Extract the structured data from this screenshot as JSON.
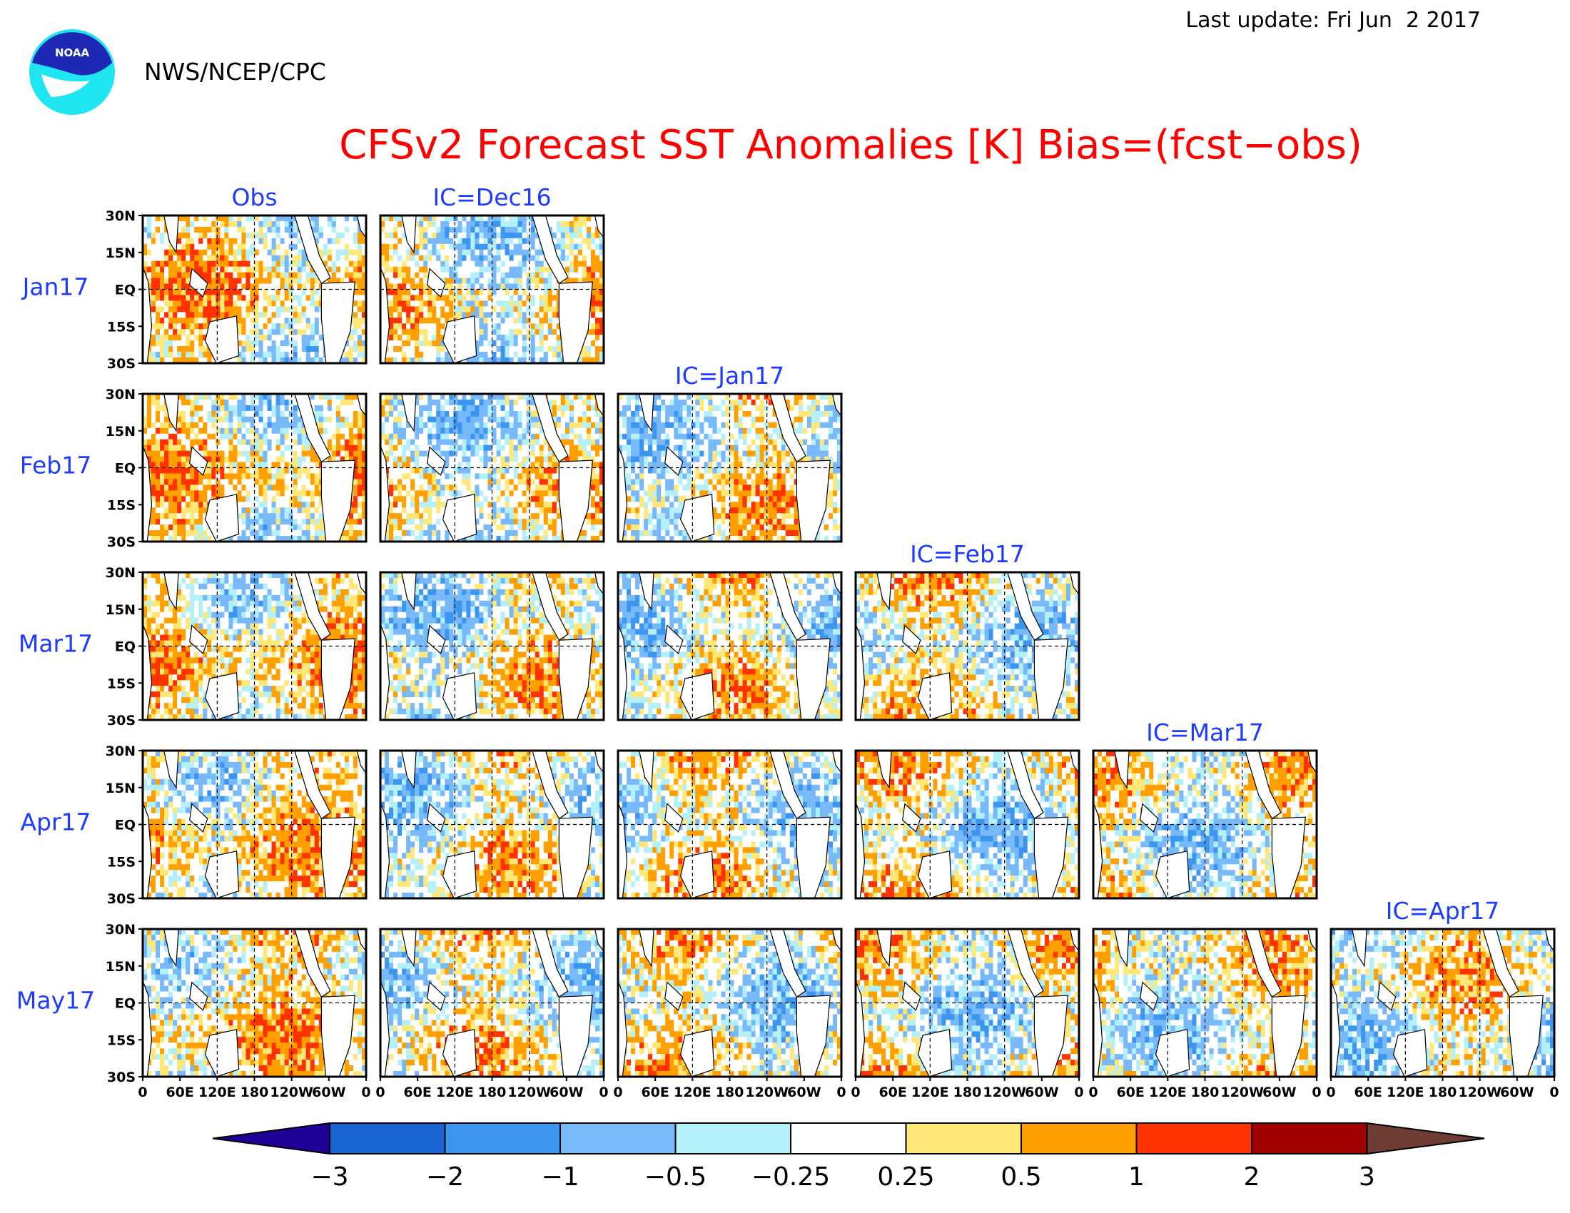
{
  "header": {
    "last_update": "Last update: Fri Jun  2 2017",
    "agency": "NWS/NCEP/CPC",
    "logo_text": "NOAA",
    "title": "CFSv2 Forecast SST Anomalies [K] Bias=(fcst−obs)"
  },
  "colors": {
    "title": "#ff0000",
    "labels": "#1e3cff",
    "frame": "#000000"
  },
  "chart_data": {
    "type": "heatmap",
    "title": "CFSv2 Forecast SST Anomalies [K] Bias=(fcst−obs)",
    "units": "K",
    "row_labels": [
      "Jan17",
      "Feb17",
      "Mar17",
      "Apr17",
      "May17"
    ],
    "column_labels": [
      "Obs",
      "IC=Dec16",
      "IC=Jan17",
      "IC=Feb17",
      "IC=Mar17",
      "IC=Apr17"
    ],
    "column_label_rows": [
      0,
      0,
      1,
      2,
      3,
      4
    ],
    "lat_ticks": [
      "30N",
      "15N",
      "EQ",
      "15S",
      "30S"
    ],
    "lat_range": [
      -30,
      30
    ],
    "lon_ticks": [
      "0",
      "60E",
      "120E",
      "180",
      "120W",
      "60W",
      "0"
    ],
    "lon_range": [
      0,
      360
    ],
    "panels_per_row": [
      2,
      3,
      4,
      5,
      6
    ],
    "grid": "dashed at EQ, 120E, 180, 120W",
    "colorbar": {
      "ticks": [
        "−3",
        "−2",
        "−1",
        "−0.5",
        "−0.25",
        "0.25",
        "0.5",
        "1",
        "2",
        "3"
      ],
      "bounds": [
        -3,
        -2,
        -1,
        -0.5,
        -0.25,
        0.25,
        0.5,
        1,
        2,
        3
      ],
      "colors": [
        "#1e0096",
        "#1964d2",
        "#3c96f0",
        "#78b9fa",
        "#b4f0fa",
        "#ffffff",
        "#ffe878",
        "#ffa000",
        "#ff3200",
        "#a00000",
        "#6e3c32"
      ]
    }
  }
}
